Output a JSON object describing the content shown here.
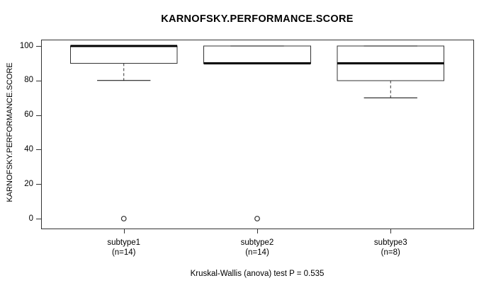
{
  "chart_data": {
    "type": "boxplot",
    "title": "KARNOFSKY.PERFORMANCE.SCORE",
    "ylabel": "KARNOFSKY.PERFORMANCE.SCORE",
    "caption": "Kruskal-Wallis (anova) test P = 0.535",
    "yticks": [
      0,
      20,
      40,
      60,
      80,
      100
    ],
    "ylim": [
      0,
      100
    ],
    "grid": false,
    "groups": [
      {
        "label": "subtype1",
        "n_label": "(n=14)",
        "q1": 90,
        "median": 100,
        "q3": 100,
        "whisker_low": 80,
        "whisker_high": 100,
        "outliers": [
          0
        ]
      },
      {
        "label": "subtype2",
        "n_label": "(n=14)",
        "q1": 90,
        "median": 90,
        "q3": 100,
        "whisker_low": 90,
        "whisker_high": 100,
        "outliers": [
          0
        ]
      },
      {
        "label": "subtype3",
        "n_label": "(n=8)",
        "q1": 80,
        "median": 90,
        "q3": 100,
        "whisker_low": 70,
        "whisker_high": 100,
        "outliers": []
      }
    ],
    "colors": {
      "line": "#333333",
      "median": "#000000",
      "box_fill": "#ffffff",
      "background": "#ffffff",
      "text": "#000000"
    }
  }
}
